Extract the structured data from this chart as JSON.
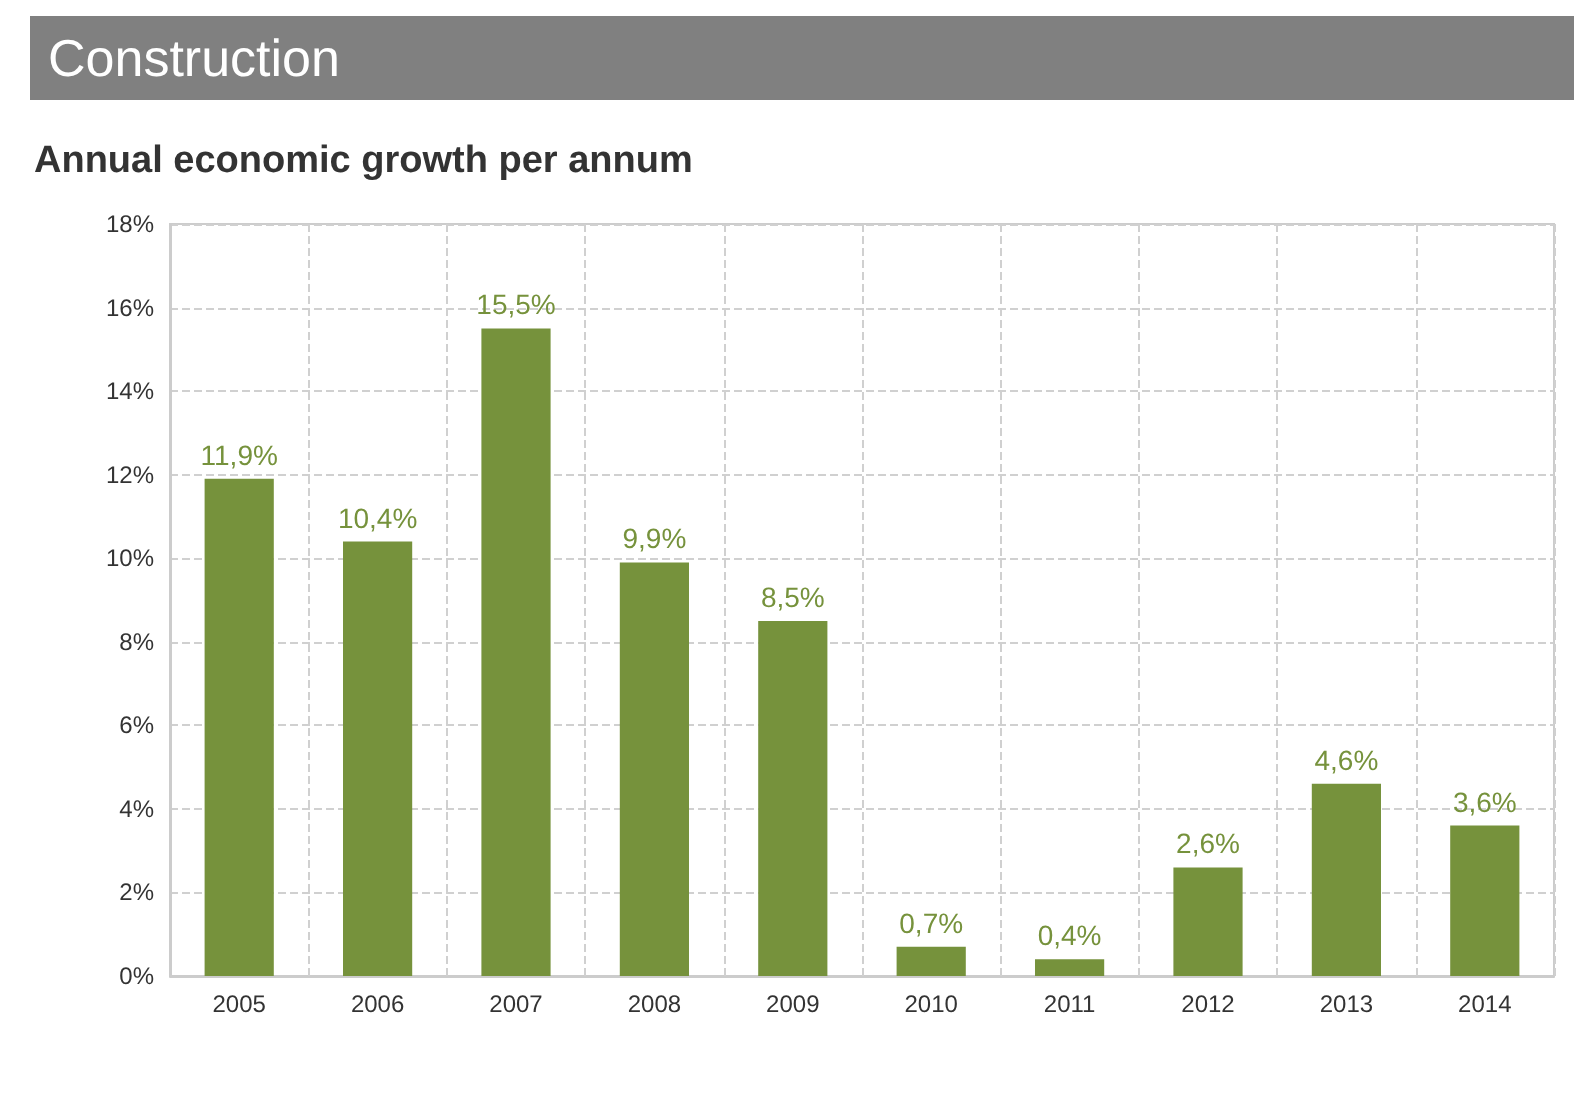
{
  "chart_data": {
    "type": "bar",
    "title": "Construction",
    "subtitle": "Annual economic growth per annum",
    "categories": [
      "2005",
      "2006",
      "2007",
      "2008",
      "2009",
      "2010",
      "2011",
      "2012",
      "2013",
      "2014"
    ],
    "values": [
      11.9,
      10.4,
      15.5,
      9.9,
      8.5,
      0.7,
      0.4,
      2.6,
      4.6,
      3.6
    ],
    "value_labels": [
      "11,9%",
      "10,4%",
      "15,5%",
      "9,9%",
      "8,5%",
      "0,7%",
      "0,4%",
      "2,6%",
      "4,6%",
      "3,6%"
    ],
    "color": "#76923c",
    "ylim": [
      0,
      18
    ],
    "yticks": [
      {
        "value": 0,
        "label": "0%"
      },
      {
        "value": 2,
        "label": "2%"
      },
      {
        "value": 4,
        "label": "4%"
      },
      {
        "value": 6,
        "label": "6%"
      },
      {
        "value": 8,
        "label": "8%"
      },
      {
        "value": 10,
        "label": "10%"
      },
      {
        "value": 12,
        "label": "12%"
      },
      {
        "value": 14,
        "label": "14%"
      },
      {
        "value": 16,
        "label": "16%"
      },
      {
        "value": 18,
        "label": "18%"
      }
    ],
    "grid": true
  }
}
